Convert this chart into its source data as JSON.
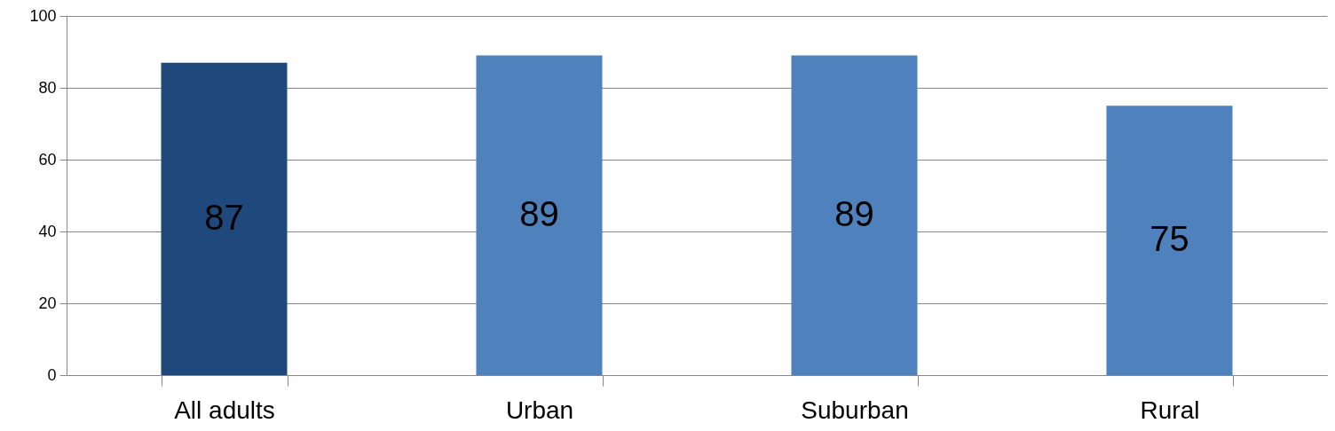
{
  "chart_data": {
    "type": "bar",
    "categories": [
      "All adults",
      "Urban",
      "Suburban",
      "Rural"
    ],
    "values": [
      87,
      89,
      89,
      75
    ],
    "colors": [
      "#1f497d",
      "#4f81bd",
      "#4f81bd",
      "#4f81bd"
    ],
    "ylim": [
      0,
      100
    ],
    "yticks": [
      0,
      20,
      40,
      60,
      80,
      100
    ],
    "grid": "y",
    "data_labels": true
  }
}
